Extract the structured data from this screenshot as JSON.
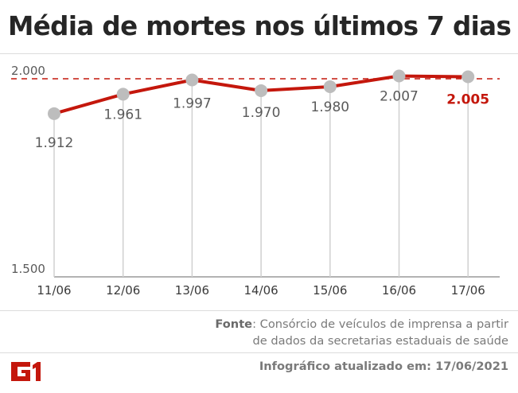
{
  "title": "Média de mortes nos últimos 7 dias",
  "chart_data": {
    "type": "line",
    "title": "Média de mortes nos últimos 7 dias",
    "categories": [
      "11/06",
      "12/06",
      "13/06",
      "14/06",
      "15/06",
      "16/06",
      "17/06"
    ],
    "values": [
      1912,
      1961,
      1997,
      1970,
      1980,
      2007,
      2005
    ],
    "value_labels": [
      "1.912",
      "1.961",
      "1.997",
      "1.970",
      "1.980",
      "2.007",
      "2.005"
    ],
    "highlight_index": 6,
    "ylim": [
      1500,
      2000
    ],
    "y_tick_labels": [
      "1.500",
      "2.000"
    ],
    "reference_line": {
      "value": 2000,
      "label": "2.000",
      "style": "dashed"
    },
    "xlabel": "",
    "ylabel": "",
    "grid": false
  },
  "source": {
    "label": "Fonte",
    "line1": "Consórcio de veículos de imprensa a partir",
    "line2": "de dados da secretarias estaduais de saúde"
  },
  "updated_note": "Infográfico atualizado em: 17/06/2021",
  "logo": {
    "text": "G1",
    "color": "#c4170c"
  },
  "colors": {
    "line": "#c4170c",
    "highlight_label": "#c4170c",
    "marker": "#bdbdbd",
    "stem": "#d0d0d0",
    "text": "#5a5a5a",
    "title": "#262626"
  }
}
